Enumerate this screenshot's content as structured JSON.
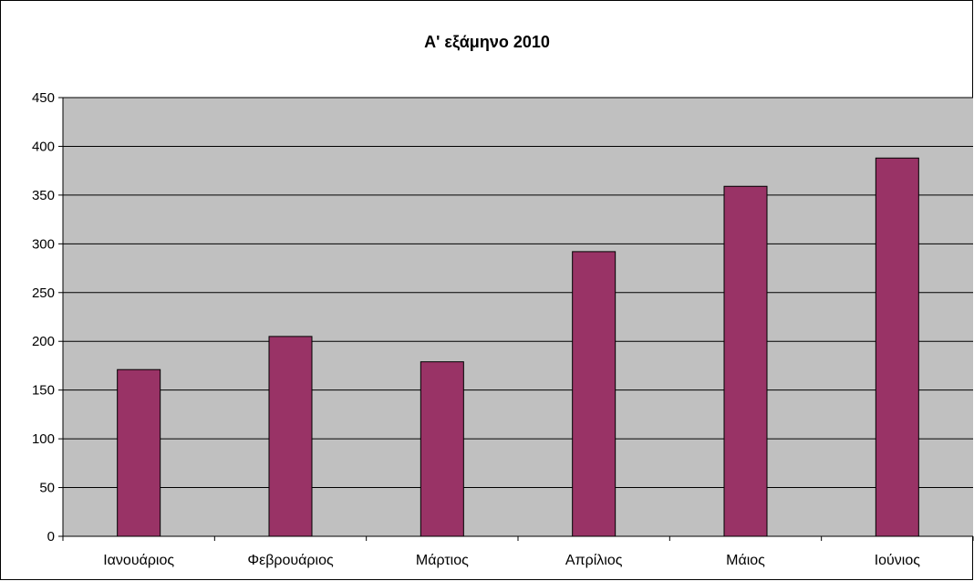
{
  "chart_data": {
    "type": "bar",
    "title": "Α' εξάμηνο 2010",
    "xlabel": "",
    "ylabel": "",
    "categories": [
      "Ιανουάριος",
      "Φεβρουάριος",
      "Μάρτιος",
      "Απρίλιος",
      "Μάιος",
      "Ιούνιος"
    ],
    "series": [
      {
        "values": [
          171,
          205,
          179,
          292,
          359,
          388
        ]
      }
    ],
    "ylim": [
      0,
      450
    ],
    "yticks": [
      0,
      50,
      100,
      150,
      200,
      250,
      300,
      350,
      400,
      450
    ],
    "grid": true,
    "legend": "none",
    "colors": {
      "bar": "#993366",
      "plot_background": "#c0c0c0",
      "gridline": "#000000"
    }
  }
}
